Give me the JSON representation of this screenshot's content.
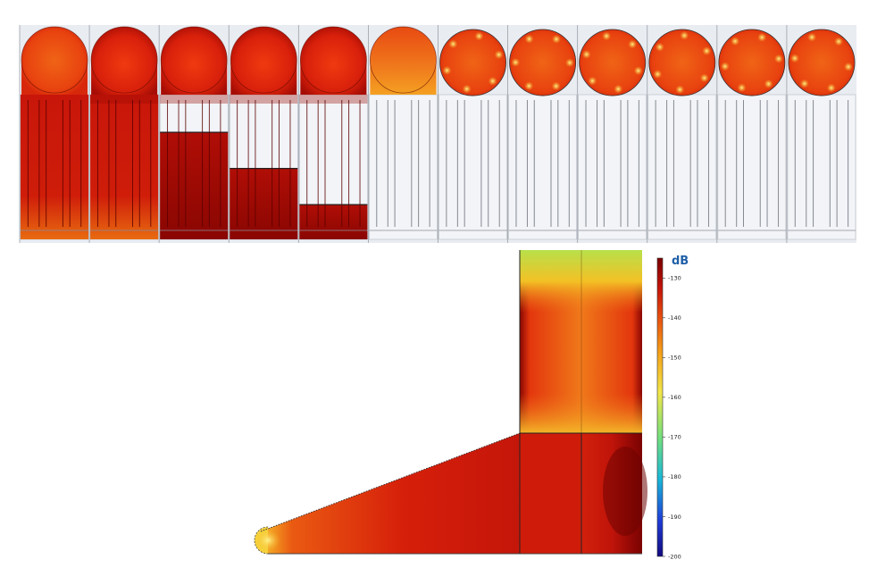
{
  "colorbar": {
    "title": "dB",
    "min": -200,
    "max": -125,
    "ticks": [
      -130,
      -140,
      -150,
      -160,
      -170,
      -180,
      -190,
      -200
    ],
    "tick_labels": [
      "-130",
      "-140",
      "-150",
      "-160",
      "-170",
      "-180",
      "-190",
      "-200"
    ],
    "colormap": [
      "#120a80",
      "#1f3cd8",
      "#19b8d8",
      "#74e07c",
      "#f2e64a",
      "#f5a21a",
      "#e8500f",
      "#c4130a",
      "#7a0000"
    ]
  },
  "top_strip": {
    "frame_count": 12,
    "frame_fill_levels": [
      1.0,
      1.0,
      0.74,
      0.49,
      0.24,
      0.0,
      0.0,
      0.0,
      0.0,
      0.0,
      0.0,
      0.0
    ],
    "structure_color": "#f1f2f5"
  }
}
